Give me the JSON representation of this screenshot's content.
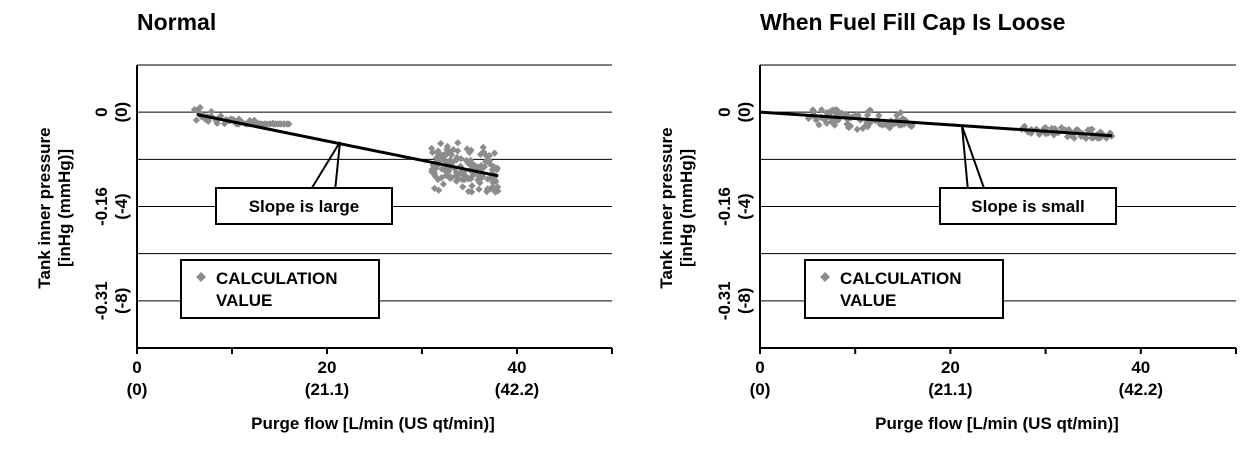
{
  "chart_data": [
    {
      "type": "scatter",
      "title": "Normal",
      "xlabel": "Purge flow [L/min (US qt/min)]",
      "ylabel_lines": [
        "Tank inner pressure",
        "[inHg (mmHg)]"
      ],
      "xlim": [
        0,
        50
      ],
      "ylim": [
        -10,
        2
      ],
      "grid": true,
      "x_ticks": [
        {
          "value": 0,
          "label": "0",
          "sublabel": "(0)"
        },
        {
          "value": 20,
          "label": "20",
          "sublabel": "(21.1)"
        },
        {
          "value": 40,
          "label": "40",
          "sublabel": "(42.2)"
        }
      ],
      "y_ticks": [
        {
          "value": 0,
          "label": "0",
          "sublabel": "(0)"
        },
        {
          "value": -4,
          "label": "-0.16",
          "sublabel": "(-4)"
        },
        {
          "value": -8,
          "label": "-0.31",
          "sublabel": "(-8)"
        }
      ],
      "gridlines": [
        2,
        0,
        -2,
        -4,
        -6,
        -8,
        -10
      ],
      "series": [
        {
          "name": "CALCULATION VALUE",
          "color": "#8c8c8c",
          "marker": "diamond",
          "clusters": [
            {
              "x_range": [
                6,
                16
              ],
              "y_range": [
                -0.5,
                0.2
              ],
              "count": 70
            },
            {
              "x_range": [
                31,
                38
              ],
              "y_range": [
                -3.7,
                -1.3
              ],
              "count": 150
            }
          ]
        }
      ],
      "trend_line": {
        "x": [
          6.3,
          38
        ],
        "y": [
          -0.1,
          -2.7
        ],
        "color": "#000000"
      },
      "annotation": {
        "text": "Slope is large",
        "points_to": {
          "x": 21.5,
          "y": -1.3
        }
      },
      "legend": {
        "lines": [
          "CALCULATION",
          "VALUE"
        ],
        "placement": "bottom-left"
      }
    },
    {
      "type": "scatter",
      "title": "When Fuel Fill Cap Is Loose",
      "xlabel": "Purge flow [L/min (US qt/min)]",
      "ylabel_lines": [
        "Tank inner pressure",
        "[inHg (mmHg)]"
      ],
      "xlim": [
        0,
        50
      ],
      "ylim": [
        -10,
        2
      ],
      "grid": true,
      "x_ticks": [
        {
          "value": 0,
          "label": "0",
          "sublabel": "(0)"
        },
        {
          "value": 20,
          "label": "20",
          "sublabel": "(21.1)"
        },
        {
          "value": 40,
          "label": "40",
          "sublabel": "(42.2)"
        }
      ],
      "y_ticks": [
        {
          "value": 0,
          "label": "0",
          "sublabel": "(0)"
        },
        {
          "value": -4,
          "label": "-0.16",
          "sublabel": "(-4)"
        },
        {
          "value": -8,
          "label": "-0.31",
          "sublabel": "(-8)"
        }
      ],
      "gridlines": [
        2,
        0,
        -2,
        -4,
        -6,
        -8,
        -10
      ],
      "series": [
        {
          "name": "CALCULATION VALUE",
          "color": "#8c8c8c",
          "marker": "diamond",
          "clusters": [
            {
              "x_range": [
                5,
                16
              ],
              "y_range": [
                -0.9,
                0.1
              ],
              "count": 90
            },
            {
              "x_range": [
                27,
                37
              ],
              "y_range": [
                -1.1,
                -0.5
              ],
              "count": 60
            }
          ]
        }
      ],
      "trend_line": {
        "x": [
          0,
          37
        ],
        "y": [
          0,
          -1.0
        ],
        "color": "#000000"
      },
      "annotation": {
        "text": "Slope is small",
        "points_to": {
          "x": 21.5,
          "y": -0.55
        }
      },
      "legend": {
        "lines": [
          "CALCULATION",
          "VALUE"
        ],
        "placement": "bottom-left"
      }
    }
  ]
}
